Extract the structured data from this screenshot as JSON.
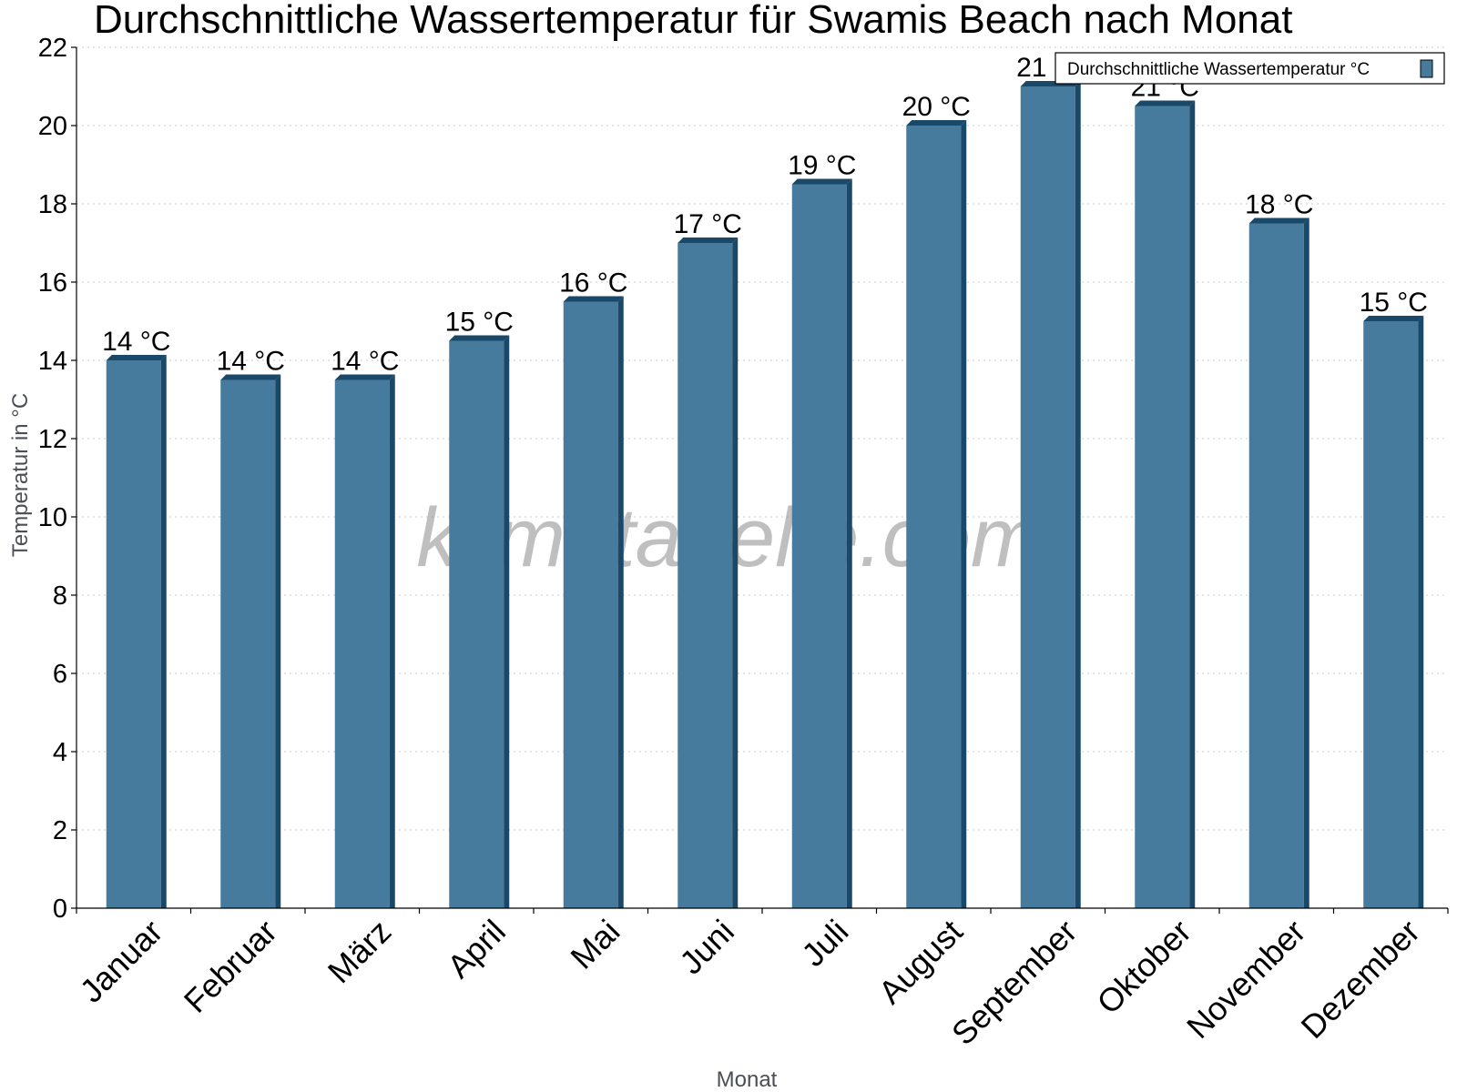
{
  "chart_data": {
    "type": "bar",
    "title": "Durchschnittliche Wassertemperatur für Swamis Beach nach Monat",
    "xlabel": "Monat",
    "ylabel": "Temperatur in °C",
    "categories": [
      "Januar",
      "Februar",
      "März",
      "April",
      "Mai",
      "Juni",
      "Juli",
      "August",
      "September",
      "Oktober",
      "November",
      "Dezember"
    ],
    "series": [
      {
        "name": "Durchschnittliche Wassertemperatur °C",
        "values": [
          14,
          13.5,
          13.5,
          14.5,
          15.5,
          17,
          18.5,
          20,
          21,
          20.5,
          17.5,
          15
        ],
        "labels": [
          "14 °C",
          "14 °C",
          "14 °C",
          "15 °C",
          "16 °C",
          "17 °C",
          "19 °C",
          "20 °C",
          "21 °C",
          "21 °C",
          "18 °C",
          "15 °C"
        ],
        "color": "#467b9d",
        "edge_color": "#1a4868"
      }
    ],
    "ylim": [
      0,
      22
    ],
    "yticks": [
      0,
      2,
      4,
      6,
      8,
      10,
      12,
      14,
      16,
      18,
      20,
      22
    ],
    "grid": true,
    "legend_position": "top-right",
    "watermark": "klimatabelle.com"
  }
}
